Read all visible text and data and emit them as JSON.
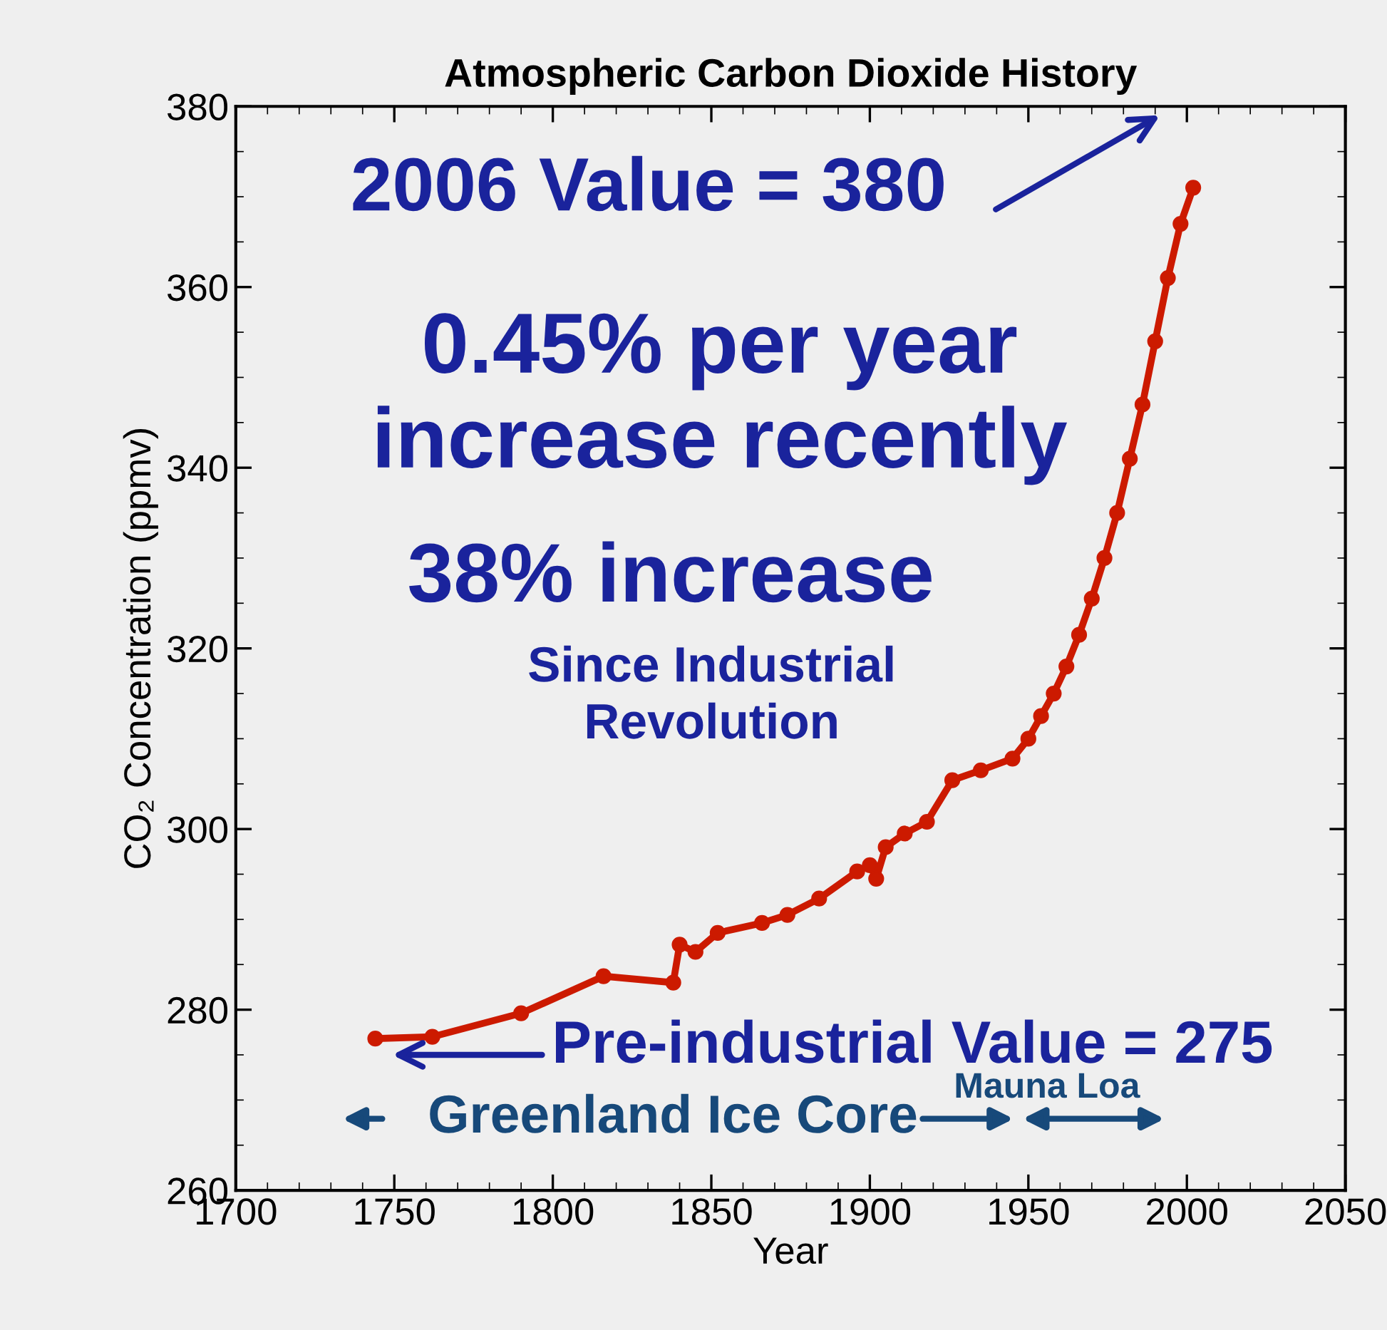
{
  "chart_data": {
    "type": "line",
    "title": "Atmospheric Carbon Dioxide History",
    "xlabel": "Year",
    "ylabel": "CO₂ Concentration (ppmv)",
    "x": [
      1744,
      1762,
      1790,
      1816,
      1838,
      1840,
      1845,
      1852,
      1866,
      1874,
      1884,
      1896,
      1900,
      1902,
      1905,
      1911,
      1918,
      1926,
      1935,
      1945,
      1950,
      1954,
      1958,
      1962,
      1966,
      1970,
      1974,
      1978,
      1982,
      1986,
      1990,
      1994,
      1998,
      2002
    ],
    "series": [
      {
        "color": "#cc1a00",
        "values": [
          276.8,
          277,
          279.6,
          283.7,
          283,
          287.2,
          286.4,
          288.5,
          289.6,
          290.5,
          292.3,
          295.3,
          296,
          294.5,
          298,
          299.5,
          300.8,
          305.4,
          306.5,
          307.8,
          310,
          312.5,
          315,
          318,
          321.5,
          325.5,
          330,
          335,
          341,
          347,
          354,
          361,
          367,
          371
        ]
      }
    ],
    "xlim": [
      1700,
      2050
    ],
    "ylim": [
      260,
      380
    ],
    "xticks": [
      1700,
      1750,
      1800,
      1850,
      1900,
      1950,
      2000,
      2050
    ],
    "yticks": [
      260,
      280,
      300,
      320,
      340,
      360,
      380
    ],
    "marker": "circle",
    "line_style": "solid",
    "grid": false,
    "annotations": [
      "2006 Value = 380",
      "0.45% per year\nincrease recently",
      "38% increase",
      "Since Industrial\nRevolution",
      "Pre-industrial Value = 275",
      "Greenland Ice Core",
      "Mauna Loa"
    ]
  }
}
